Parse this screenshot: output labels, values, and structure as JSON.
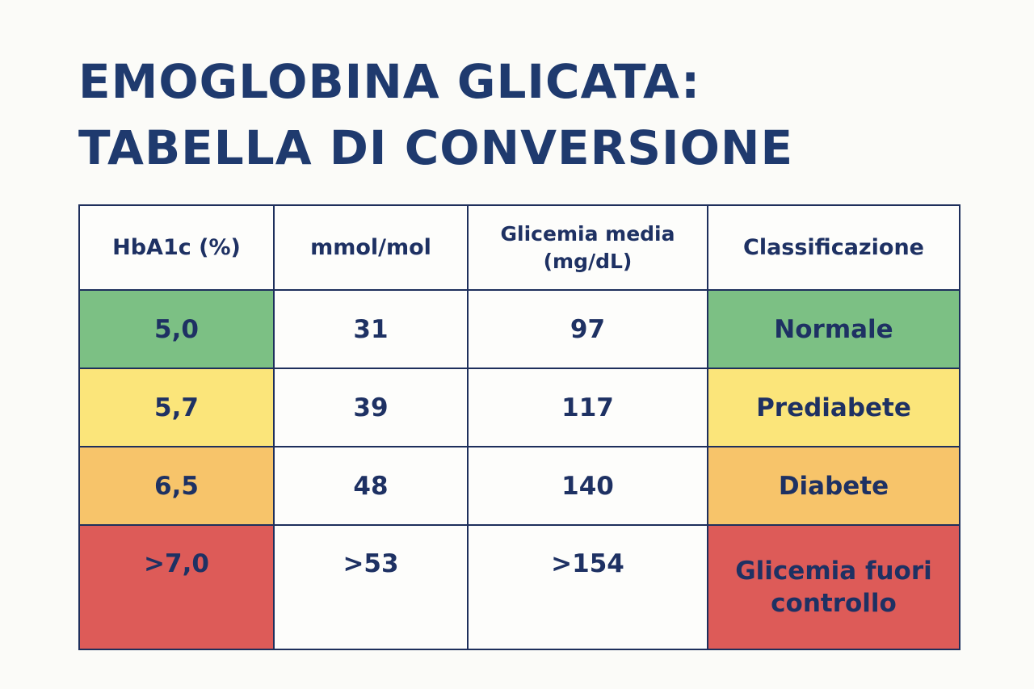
{
  "title": {
    "line1": "EMOGLOBINA GLICATA:",
    "line2": "TABELLA DI CONVERSIONE"
  },
  "table": {
    "headers": [
      "HbA1c (%)",
      "mmol/mol",
      "Glicemia media (mg/dL)",
      "Classificazione"
    ],
    "rows": [
      {
        "hba1c": "5,0",
        "mmol": "31",
        "glicemia": "97",
        "classificazione": "Normale",
        "color": "#7cc084"
      },
      {
        "hba1c": "5,7",
        "mmol": "39",
        "glicemia": "117",
        "classificazione": "Prediabete",
        "color": "#fbe57a"
      },
      {
        "hba1c": "6,5",
        "mmol": "48",
        "glicemia": "140",
        "classificazione": "Diabete",
        "color": "#f7c46a"
      },
      {
        "hba1c": ">7,0",
        "mmol": ">53",
        "glicemia": ">154",
        "classificazione": "Glicemia fuori controllo",
        "color": "#dd5b58"
      }
    ]
  },
  "colors": {
    "title": "#1f3a6e",
    "text": "#1e3163",
    "border": "#1e2f5c",
    "background": "#fbfbf8"
  }
}
